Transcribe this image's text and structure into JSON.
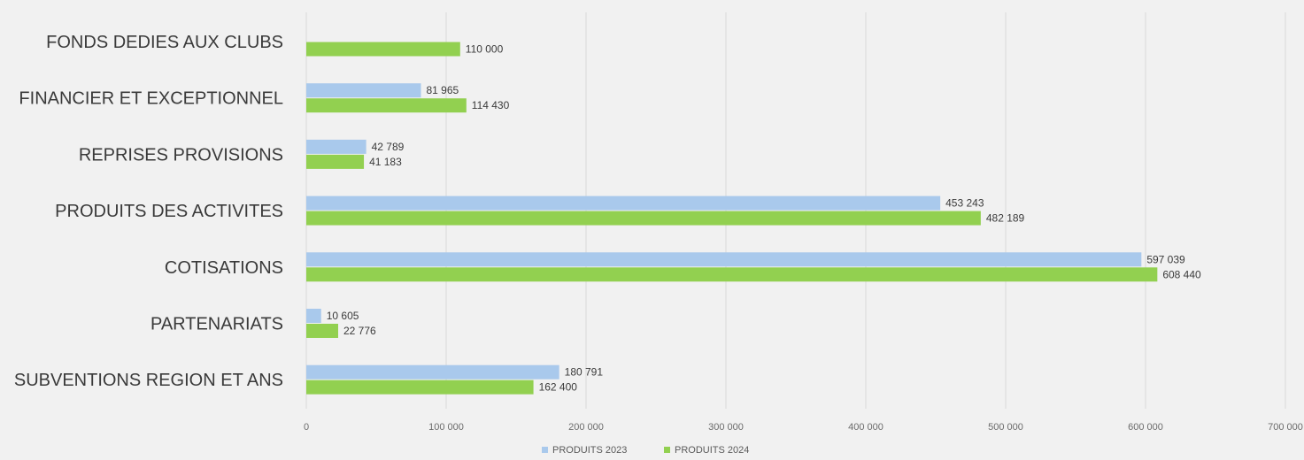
{
  "chart_data": {
    "type": "bar",
    "orientation": "horizontal",
    "categories": [
      "FONDS DEDIES AUX CLUBS",
      "FINANCIER ET EXCEPTIONNEL",
      "REPRISES PROVISIONS",
      "PRODUITS DES ACTIVITES",
      "COTISATIONS",
      "PARTENARIATS",
      "SUBVENTIONS REGION ET ANS"
    ],
    "series": [
      {
        "name": "PRODUITS 2023",
        "color": "#a9c9ec",
        "values": [
          null,
          81965,
          42789,
          453243,
          597039,
          10605,
          180791
        ],
        "labels": [
          "",
          "81 965",
          "42 789",
          "453 243",
          "597 039",
          "10 605",
          "180 791"
        ]
      },
      {
        "name": "PRODUITS 2024",
        "color": "#92d050",
        "values": [
          110000,
          114430,
          41183,
          482189,
          608440,
          22776,
          162400
        ],
        "labels": [
          "110 000",
          "114 430",
          "41 183",
          "482 189",
          "608 440",
          "22 776",
          "162 400"
        ]
      }
    ],
    "xlim": [
      0,
      700000
    ],
    "xticks": [
      0,
      100000,
      200000,
      300000,
      400000,
      500000,
      600000,
      700000
    ],
    "xtick_labels": [
      "0",
      "100 000",
      "200 000",
      "300 000",
      "400 000",
      "500 000",
      "600 000",
      "700 000"
    ],
    "title": "",
    "xlabel": "",
    "ylabel": "",
    "grid": true,
    "legend_position": "bottom"
  }
}
